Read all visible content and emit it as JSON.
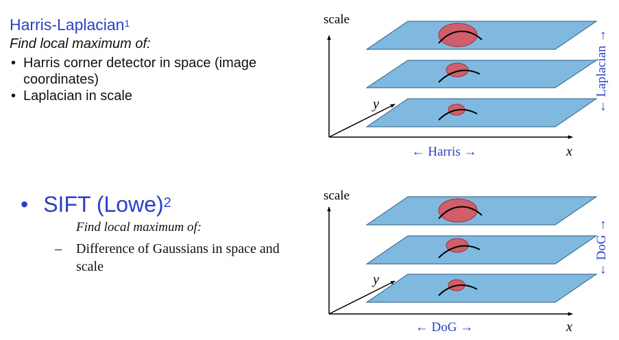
{
  "harris_laplacian": {
    "title": "Harris-Laplacian",
    "footnote": "1",
    "subtitle": "Find local maximum of:",
    "bullet_glyph": "•",
    "bullets": [
      "Harris corner detector in space (image coordinates)",
      "Laplacian in scale"
    ]
  },
  "sift": {
    "bullet_glyph": "•",
    "title": "SIFT (Lowe)",
    "footnote": "2",
    "subtitle": "Find local maximum of:",
    "dash_glyph": "–",
    "bullets": [
      "Difference of Gaussians in space and scale"
    ]
  },
  "diagram_top": {
    "scale_label": "scale",
    "y_label": "y",
    "x_label": "x",
    "horizontal_label": "← Harris →",
    "vertical_label": "← Laplacian →"
  },
  "diagram_bottom": {
    "scale_label": "scale",
    "y_label": "y",
    "x_label": "x",
    "horizontal_label": "← DoG →",
    "vertical_label": "← DoG →"
  },
  "colors": {
    "text_blue": "#2a3fc7",
    "plane_fill": "#7fb9df",
    "plane_stroke": "#2c5a80",
    "blob_fill": "#d9555f",
    "blob_stroke": "#a5202c",
    "axis": "#000000"
  }
}
